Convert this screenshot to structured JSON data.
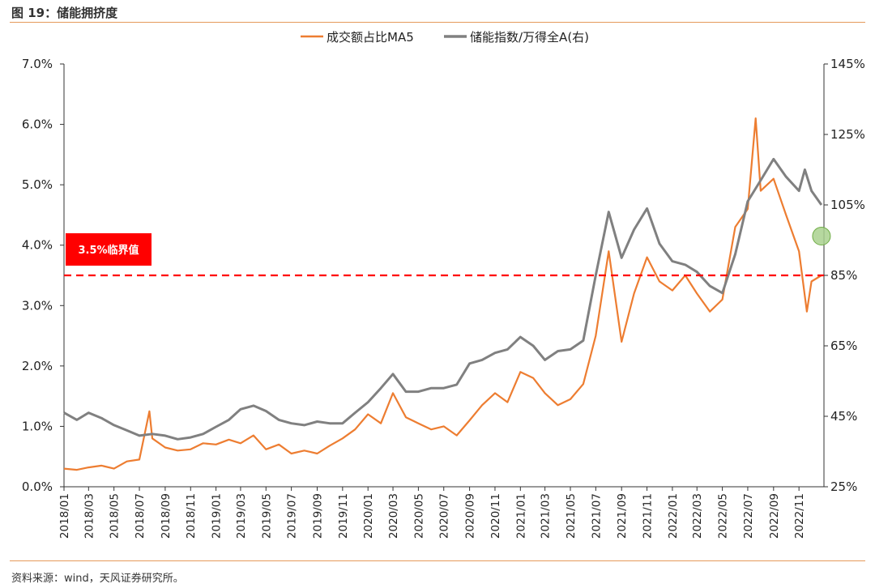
{
  "figure_title": "图 19：储能拥挤度",
  "source_note": "资料来源：wind，天风证券研究所。",
  "chart_data": {
    "type": "line",
    "title": "",
    "xlabel": "",
    "ylabel": "",
    "x_tick_labels": [
      "2018/01",
      "2018/03",
      "2018/05",
      "2018/07",
      "2018/09",
      "2018/11",
      "2019/01",
      "2019/03",
      "2019/05",
      "2019/07",
      "2019/09",
      "2019/11",
      "2020/01",
      "2020/03",
      "2020/05",
      "2020/07",
      "2020/09",
      "2020/11",
      "2021/01",
      "2021/03",
      "2021/05",
      "2021/07",
      "2021/09",
      "2021/11",
      "2022/01",
      "2022/03",
      "2022/05",
      "2022/07",
      "2022/09",
      "2022/11"
    ],
    "y_left": {
      "ticks": [
        "0.0%",
        "1.0%",
        "2.0%",
        "3.0%",
        "4.0%",
        "5.0%",
        "6.0%",
        "7.0%"
      ],
      "range": [
        0,
        7
      ]
    },
    "y_right": {
      "ticks": [
        "25%",
        "45%",
        "65%",
        "85%",
        "105%",
        "125%",
        "145%"
      ],
      "range": [
        25,
        145
      ]
    },
    "grid": false,
    "legend_position": "top-center",
    "series": [
      {
        "name": "成交额占比MA5",
        "axis": "left",
        "color": "#ed7d31",
        "points": [
          [
            "2018/01",
            0.3
          ],
          [
            "2018/02",
            0.28
          ],
          [
            "2018/03",
            0.32
          ],
          [
            "2018/04",
            0.35
          ],
          [
            "2018/05",
            0.3
          ],
          [
            "2018/06",
            0.42
          ],
          [
            "2018/07",
            0.45
          ],
          [
            "2018/07/25",
            1.25
          ],
          [
            "2018/08",
            0.8
          ],
          [
            "2018/09",
            0.65
          ],
          [
            "2018/10",
            0.6
          ],
          [
            "2018/11",
            0.62
          ],
          [
            "2018/12",
            0.72
          ],
          [
            "2019/01",
            0.7
          ],
          [
            "2019/02",
            0.78
          ],
          [
            "2019/03",
            0.72
          ],
          [
            "2019/04",
            0.85
          ],
          [
            "2019/05",
            0.62
          ],
          [
            "2019/06",
            0.7
          ],
          [
            "2019/07",
            0.55
          ],
          [
            "2019/08",
            0.6
          ],
          [
            "2019/09",
            0.55
          ],
          [
            "2019/10",
            0.68
          ],
          [
            "2019/11",
            0.8
          ],
          [
            "2019/12",
            0.95
          ],
          [
            "2020/01",
            1.2
          ],
          [
            "2020/02",
            1.05
          ],
          [
            "2020/03",
            1.55
          ],
          [
            "2020/04",
            1.15
          ],
          [
            "2020/05",
            1.05
          ],
          [
            "2020/06",
            0.95
          ],
          [
            "2020/07",
            1.0
          ],
          [
            "2020/08",
            0.85
          ],
          [
            "2020/09",
            1.1
          ],
          [
            "2020/10",
            1.35
          ],
          [
            "2020/11",
            1.55
          ],
          [
            "2020/12",
            1.4
          ],
          [
            "2021/01",
            1.9
          ],
          [
            "2021/02",
            1.8
          ],
          [
            "2021/03",
            1.55
          ],
          [
            "2021/04",
            1.35
          ],
          [
            "2021/05",
            1.45
          ],
          [
            "2021/06",
            1.7
          ],
          [
            "2021/07",
            2.5
          ],
          [
            "2021/08",
            3.9
          ],
          [
            "2021/09",
            2.4
          ],
          [
            "2021/10",
            3.2
          ],
          [
            "2021/11",
            3.8
          ],
          [
            "2021/12",
            3.4
          ],
          [
            "2022/01",
            3.25
          ],
          [
            "2022/02",
            3.5
          ],
          [
            "2022/03",
            3.2
          ],
          [
            "2022/04",
            2.9
          ],
          [
            "2022/05",
            3.1
          ],
          [
            "2022/06",
            4.3
          ],
          [
            "2022/07",
            4.6
          ],
          [
            "2022/07/20",
            6.1
          ],
          [
            "2022/08",
            4.9
          ],
          [
            "2022/09",
            5.1
          ],
          [
            "2022/10",
            4.5
          ],
          [
            "2022/11",
            3.9
          ],
          [
            "2022/11/20",
            2.9
          ],
          [
            "2022/12",
            3.4
          ],
          [
            "2022/12/25",
            3.5
          ]
        ]
      },
      {
        "name": "储能指数/万得全A(右)",
        "axis": "right",
        "color": "#808080",
        "points": [
          [
            "2018/01",
            46.0
          ],
          [
            "2018/02",
            44.0
          ],
          [
            "2018/03",
            46.0
          ],
          [
            "2018/04",
            44.5
          ],
          [
            "2018/05",
            42.5
          ],
          [
            "2018/06",
            41.0
          ],
          [
            "2018/07",
            39.5
          ],
          [
            "2018/08",
            40.0
          ],
          [
            "2018/09",
            39.5
          ],
          [
            "2018/10",
            38.5
          ],
          [
            "2018/11",
            39.0
          ],
          [
            "2018/12",
            40.0
          ],
          [
            "2019/01",
            42.0
          ],
          [
            "2019/02",
            44.0
          ],
          [
            "2019/03",
            47.0
          ],
          [
            "2019/04",
            48.0
          ],
          [
            "2019/05",
            46.5
          ],
          [
            "2019/06",
            44.0
          ],
          [
            "2019/07",
            43.0
          ],
          [
            "2019/08",
            42.5
          ],
          [
            "2019/09",
            43.5
          ],
          [
            "2019/10",
            43.0
          ],
          [
            "2019/11",
            43.0
          ],
          [
            "2019/12",
            46.0
          ],
          [
            "2020/01",
            49.0
          ],
          [
            "2020/02",
            53.0
          ],
          [
            "2020/03",
            57.0
          ],
          [
            "2020/04",
            52.0
          ],
          [
            "2020/05",
            52.0
          ],
          [
            "2020/06",
            53.0
          ],
          [
            "2020/07",
            53.0
          ],
          [
            "2020/08",
            54.0
          ],
          [
            "2020/09",
            60.0
          ],
          [
            "2020/10",
            61.0
          ],
          [
            "2020/11",
            63.0
          ],
          [
            "2020/12",
            64.0
          ],
          [
            "2021/01",
            67.5
          ],
          [
            "2021/02",
            65.0
          ],
          [
            "2021/03",
            61.0
          ],
          [
            "2021/04",
            63.5
          ],
          [
            "2021/05",
            64.0
          ],
          [
            "2021/06",
            66.5
          ],
          [
            "2021/07",
            85.0
          ],
          [
            "2021/08",
            103.0
          ],
          [
            "2021/09",
            90.0
          ],
          [
            "2021/10",
            98.0
          ],
          [
            "2021/11",
            104.0
          ],
          [
            "2021/12",
            94.0
          ],
          [
            "2022/01",
            89.0
          ],
          [
            "2022/02",
            88.0
          ],
          [
            "2022/03",
            86.0
          ],
          [
            "2022/04",
            82.0
          ],
          [
            "2022/05",
            80.0
          ],
          [
            "2022/06",
            91.0
          ],
          [
            "2022/07",
            106.0
          ],
          [
            "2022/08",
            112.0
          ],
          [
            "2022/09",
            118.0
          ],
          [
            "2022/10",
            113.0
          ],
          [
            "2022/11",
            109.0
          ],
          [
            "2022/11/15",
            115.0
          ],
          [
            "2022/12",
            109.0
          ],
          [
            "2022/12/25",
            105.0
          ]
        ]
      }
    ],
    "reference_line": {
      "value": 3.5,
      "axis": "left",
      "style": "dashed",
      "color": "#ff0000"
    },
    "annotation": {
      "text": "3.5%临界值",
      "background": "#ff0000"
    },
    "marker": {
      "date": "2022/12/25",
      "value": 4.15,
      "axis": "left",
      "color": "#a9d18e"
    }
  }
}
